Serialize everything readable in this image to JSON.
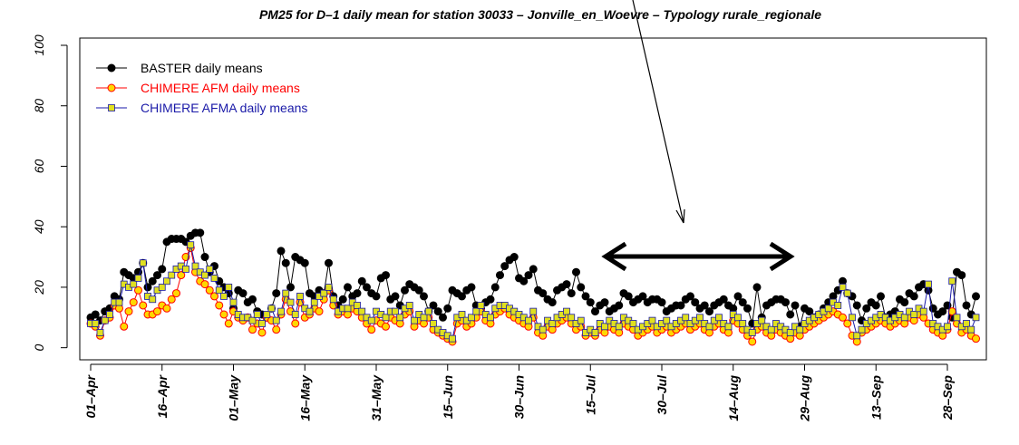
{
  "chart_data": {
    "type": "line",
    "title": "PM25  for  D–1  daily mean for station 30033  –  Jonville_en_Woevre – Typology rurale_regionale",
    "categories": [
      "01–Apr",
      null,
      null,
      null,
      null,
      null,
      null,
      null,
      null,
      null,
      null,
      null,
      null,
      null,
      null,
      "16–Apr",
      null,
      null,
      null,
      null,
      null,
      null,
      null,
      null,
      null,
      null,
      null,
      null,
      null,
      null,
      "01–May",
      null,
      null,
      null,
      null,
      null,
      null,
      null,
      null,
      null,
      null,
      null,
      null,
      null,
      null,
      "16–May",
      null,
      null,
      null,
      null,
      null,
      null,
      null,
      null,
      null,
      null,
      null,
      null,
      null,
      null,
      "31–May",
      null,
      null,
      null,
      null,
      null,
      null,
      null,
      null,
      null,
      null,
      null,
      null,
      null,
      null,
      "15–Jun",
      null,
      null,
      null,
      null,
      null,
      null,
      null,
      null,
      null,
      null,
      null,
      null,
      null,
      null,
      "30–Jun",
      null,
      null,
      null,
      null,
      null,
      null,
      null,
      null,
      null,
      null,
      null,
      null,
      null,
      null,
      "15–Jul",
      null,
      null,
      null,
      null,
      null,
      null,
      null,
      null,
      null,
      null,
      null,
      null,
      null,
      null,
      "30–Jul",
      null,
      null,
      null,
      null,
      null,
      null,
      null,
      null,
      null,
      null,
      null,
      null,
      null,
      null,
      "14–Aug",
      null,
      null,
      null,
      null,
      null,
      null,
      null,
      null,
      null,
      null,
      null,
      null,
      null,
      null,
      "29–Aug",
      null,
      null,
      null,
      null,
      null,
      null,
      null,
      null,
      null,
      null,
      null,
      null,
      null,
      null,
      "13–Sep",
      null,
      null,
      null,
      null,
      null,
      null,
      null,
      null,
      null,
      null,
      null,
      null,
      null,
      null,
      "28–Sep",
      null,
      null,
      null,
      null,
      null,
      null
    ],
    "series": [
      {
        "name": "BASTER daily means",
        "color": "#000000",
        "marker": "circle",
        "marker_fill": "#000000",
        "values": [
          10,
          11,
          9,
          12,
          13,
          17,
          16,
          25,
          24,
          23,
          25,
          28,
          20,
          22,
          24,
          26,
          35,
          36,
          36,
          36,
          35,
          37,
          38,
          38,
          30,
          25,
          27,
          22,
          20,
          18,
          13,
          19,
          18,
          15,
          16,
          12,
          11,
          10,
          13,
          18,
          32,
          28,
          20,
          30,
          29,
          28,
          18,
          17,
          19,
          18,
          28,
          17,
          14,
          16,
          20,
          17,
          18,
          22,
          20,
          18,
          17,
          23,
          24,
          16,
          17,
          14,
          19,
          21,
          20,
          19,
          17,
          12,
          14,
          12,
          10,
          13,
          19,
          18,
          17,
          19,
          20,
          14,
          13,
          15,
          16,
          20,
          24,
          27,
          29,
          30,
          23,
          22,
          24,
          26,
          19,
          18,
          16,
          15,
          19,
          20,
          21,
          18,
          25,
          20,
          17,
          15,
          12,
          14,
          15,
          12,
          13,
          14,
          18,
          17,
          15,
          16,
          17,
          15,
          16,
          16,
          15,
          12,
          13,
          14,
          14,
          16,
          17,
          15,
          13,
          14,
          12,
          14,
          15,
          16,
          14,
          13,
          17,
          15,
          13,
          8,
          20,
          10,
          14,
          15,
          16,
          16,
          15,
          11,
          14,
          7,
          13,
          12,
          10,
          11,
          13,
          15,
          17,
          19,
          22,
          18,
          17,
          14,
          9,
          13,
          15,
          14,
          17,
          10,
          11,
          12,
          16,
          15,
          18,
          17,
          20,
          21,
          19,
          13,
          11,
          12,
          14,
          10,
          25,
          24,
          14,
          11,
          17
        ]
      },
      {
        "name": "CHIMERE AFM daily means",
        "color": "#ff0000",
        "marker": "circle",
        "marker_fill": "#ffd700",
        "values": [
          8,
          7,
          4,
          9,
          10,
          14,
          13,
          7,
          12,
          15,
          19,
          14,
          11,
          11,
          12,
          14,
          13,
          16,
          18,
          24,
          30,
          33,
          25,
          22,
          21,
          19,
          17,
          14,
          11,
          8,
          12,
          10,
          9,
          10,
          6,
          8,
          5,
          10,
          9,
          6,
          11,
          16,
          12,
          8,
          15,
          10,
          11,
          13,
          12,
          16,
          19,
          14,
          11,
          12,
          11,
          13,
          12,
          10,
          8,
          6,
          9,
          8,
          7,
          10,
          9,
          8,
          11,
          12,
          7,
          9,
          8,
          10,
          6,
          5,
          4,
          3,
          2,
          8,
          9,
          7,
          8,
          10,
          12,
          9,
          8,
          11,
          12,
          13,
          11,
          10,
          9,
          8,
          7,
          10,
          5,
          4,
          7,
          6,
          8,
          9,
          10,
          8,
          6,
          7,
          4,
          5,
          4,
          6,
          5,
          7,
          6,
          5,
          8,
          7,
          6,
          4,
          5,
          6,
          7,
          5,
          6,
          7,
          5,
          6,
          7,
          8,
          6,
          7,
          8,
          6,
          5,
          7,
          8,
          6,
          5,
          9,
          8,
          6,
          4,
          2,
          6,
          7,
          5,
          4,
          6,
          5,
          4,
          3,
          5,
          4,
          6,
          7,
          8,
          9,
          10,
          11,
          12,
          11,
          10,
          8,
          4,
          2,
          5,
          6,
          7,
          8,
          9,
          8,
          7,
          8,
          9,
          8,
          10,
          9,
          11,
          10,
          8,
          6,
          5,
          4,
          6,
          12,
          8,
          5,
          6,
          4,
          3
        ]
      },
      {
        "name": "CHIMERE AFMA daily means",
        "color": "#1a1aa8",
        "marker": "square",
        "marker_fill": "#e0e020",
        "values": [
          8,
          8,
          5,
          9,
          11,
          15,
          15,
          21,
          20,
          21,
          23,
          28,
          17,
          16,
          19,
          20,
          22,
          24,
          26,
          27,
          26,
          34,
          27,
          25,
          24,
          26,
          23,
          19,
          17,
          20,
          15,
          11,
          10,
          10,
          9,
          11,
          8,
          11,
          13,
          9,
          12,
          18,
          15,
          11,
          17,
          13,
          12,
          15,
          17,
          18,
          20,
          16,
          12,
          13,
          13,
          15,
          14,
          12,
          10,
          9,
          12,
          11,
          10,
          12,
          12,
          10,
          13,
          14,
          9,
          11,
          10,
          12,
          8,
          6,
          5,
          4,
          3,
          10,
          11,
          9,
          10,
          12,
          14,
          11,
          10,
          13,
          14,
          14,
          13,
          12,
          11,
          10,
          9,
          12,
          7,
          6,
          9,
          8,
          10,
          11,
          12,
          10,
          8,
          9,
          5,
          6,
          5,
          8,
          7,
          9,
          8,
          7,
          10,
          9,
          8,
          6,
          7,
          8,
          9,
          7,
          8,
          9,
          7,
          8,
          9,
          10,
          8,
          9,
          10,
          8,
          7,
          9,
          10,
          8,
          7,
          11,
          10,
          8,
          6,
          5,
          8,
          9,
          7,
          6,
          8,
          7,
          6,
          5,
          7,
          6,
          8,
          9,
          10,
          11,
          12,
          13,
          15,
          14,
          20,
          18,
          10,
          4,
          6,
          8,
          9,
          10,
          11,
          10,
          9,
          10,
          11,
          10,
          12,
          11,
          13,
          12,
          21,
          8,
          7,
          6,
          7,
          22,
          10,
          7,
          8,
          6,
          10
        ]
      }
    ],
    "ylim": [
      -4,
      102.4
    ],
    "yticks": [
      0,
      20,
      40,
      60,
      80,
      100
    ],
    "legend": "top-left"
  }
}
